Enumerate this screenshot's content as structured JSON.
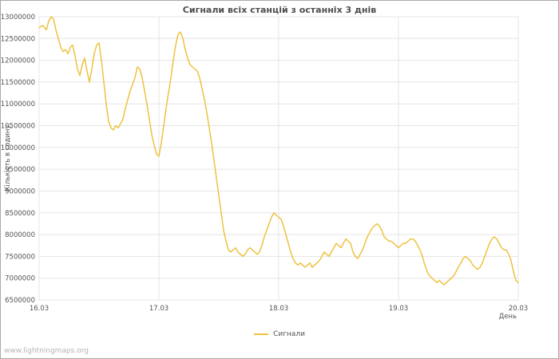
{
  "footer": {
    "watermark": "www.lightningmaps.org"
  },
  "chart_data": {
    "type": "line",
    "title": "Сигнали всіх станцій з останніх 3 днів",
    "xlabel": "День",
    "ylabel": "Кількість в годину",
    "grid": true,
    "legend_position": "bottom-center",
    "colors": {
      "line": "#edc240",
      "grid": "#e5e5e5",
      "border": "#cccccc",
      "tick_text": "#545454",
      "title_text": "#4d4d4d",
      "watermark_text": "#b3b3b3"
    },
    "xlim": [
      0,
      4
    ],
    "ylim": [
      6500000,
      13000000
    ],
    "x_ticks": [
      {
        "pos": 0,
        "label": "16.03"
      },
      {
        "pos": 1,
        "label": "17.03"
      },
      {
        "pos": 2,
        "label": "18.03"
      },
      {
        "pos": 3,
        "label": "19.03"
      },
      {
        "pos": 4,
        "label": "20.03"
      }
    ],
    "y_ticks": [
      6500000,
      7000000,
      7500000,
      8000000,
      8500000,
      9000000,
      9500000,
      10000000,
      10500000,
      11000000,
      11500000,
      12000000,
      12500000,
      13000000
    ],
    "series": [
      {
        "name": "Сигнали",
        "color": "#edc240",
        "points": [
          [
            0.0,
            12750000
          ],
          [
            0.03,
            12800000
          ],
          [
            0.06,
            12700000
          ],
          [
            0.08,
            12900000
          ],
          [
            0.1,
            13000000
          ],
          [
            0.12,
            12950000
          ],
          [
            0.14,
            12700000
          ],
          [
            0.16,
            12500000
          ],
          [
            0.18,
            12300000
          ],
          [
            0.2,
            12200000
          ],
          [
            0.22,
            12250000
          ],
          [
            0.24,
            12150000
          ],
          [
            0.26,
            12300000
          ],
          [
            0.28,
            12350000
          ],
          [
            0.3,
            12100000
          ],
          [
            0.32,
            11800000
          ],
          [
            0.34,
            11650000
          ],
          [
            0.36,
            11900000
          ],
          [
            0.38,
            12050000
          ],
          [
            0.4,
            11750000
          ],
          [
            0.42,
            11500000
          ],
          [
            0.44,
            11800000
          ],
          [
            0.46,
            12150000
          ],
          [
            0.48,
            12350000
          ],
          [
            0.5,
            12400000
          ],
          [
            0.52,
            12000000
          ],
          [
            0.54,
            11500000
          ],
          [
            0.56,
            11000000
          ],
          [
            0.58,
            10600000
          ],
          [
            0.6,
            10450000
          ],
          [
            0.62,
            10400000
          ],
          [
            0.64,
            10500000
          ],
          [
            0.66,
            10450000
          ],
          [
            0.68,
            10550000
          ],
          [
            0.7,
            10650000
          ],
          [
            0.72,
            10900000
          ],
          [
            0.74,
            11100000
          ],
          [
            0.76,
            11300000
          ],
          [
            0.78,
            11450000
          ],
          [
            0.8,
            11600000
          ],
          [
            0.82,
            11850000
          ],
          [
            0.84,
            11800000
          ],
          [
            0.86,
            11600000
          ],
          [
            0.88,
            11300000
          ],
          [
            0.9,
            11000000
          ],
          [
            0.92,
            10650000
          ],
          [
            0.94,
            10300000
          ],
          [
            0.96,
            10050000
          ],
          [
            0.98,
            9850000
          ],
          [
            1.0,
            9800000
          ],
          [
            1.02,
            10100000
          ],
          [
            1.04,
            10500000
          ],
          [
            1.06,
            10900000
          ],
          [
            1.08,
            11250000
          ],
          [
            1.1,
            11600000
          ],
          [
            1.12,
            12000000
          ],
          [
            1.14,
            12350000
          ],
          [
            1.16,
            12600000
          ],
          [
            1.18,
            12650000
          ],
          [
            1.2,
            12500000
          ],
          [
            1.22,
            12250000
          ],
          [
            1.24,
            12050000
          ],
          [
            1.26,
            11900000
          ],
          [
            1.28,
            11850000
          ],
          [
            1.3,
            11800000
          ],
          [
            1.32,
            11750000
          ],
          [
            1.34,
            11600000
          ],
          [
            1.36,
            11350000
          ],
          [
            1.38,
            11100000
          ],
          [
            1.4,
            10800000
          ],
          [
            1.42,
            10450000
          ],
          [
            1.44,
            10100000
          ],
          [
            1.46,
            9700000
          ],
          [
            1.48,
            9300000
          ],
          [
            1.5,
            8900000
          ],
          [
            1.52,
            8500000
          ],
          [
            1.54,
            8100000
          ],
          [
            1.56,
            7850000
          ],
          [
            1.58,
            7650000
          ],
          [
            1.6,
            7600000
          ],
          [
            1.62,
            7650000
          ],
          [
            1.64,
            7700000
          ],
          [
            1.66,
            7600000
          ],
          [
            1.68,
            7550000
          ],
          [
            1.7,
            7500000
          ],
          [
            1.72,
            7550000
          ],
          [
            1.74,
            7650000
          ],
          [
            1.76,
            7700000
          ],
          [
            1.78,
            7650000
          ],
          [
            1.8,
            7600000
          ],
          [
            1.82,
            7550000
          ],
          [
            1.84,
            7600000
          ],
          [
            1.86,
            7750000
          ],
          [
            1.88,
            7950000
          ],
          [
            1.9,
            8100000
          ],
          [
            1.92,
            8250000
          ],
          [
            1.94,
            8400000
          ],
          [
            1.96,
            8500000
          ],
          [
            1.98,
            8450000
          ],
          [
            2.0,
            8400000
          ],
          [
            2.02,
            8350000
          ],
          [
            2.04,
            8200000
          ],
          [
            2.06,
            8000000
          ],
          [
            2.08,
            7800000
          ],
          [
            2.1,
            7600000
          ],
          [
            2.12,
            7450000
          ],
          [
            2.14,
            7350000
          ],
          [
            2.16,
            7300000
          ],
          [
            2.18,
            7350000
          ],
          [
            2.2,
            7300000
          ],
          [
            2.22,
            7250000
          ],
          [
            2.24,
            7300000
          ],
          [
            2.26,
            7350000
          ],
          [
            2.28,
            7250000
          ],
          [
            2.3,
            7300000
          ],
          [
            2.32,
            7350000
          ],
          [
            2.34,
            7400000
          ],
          [
            2.36,
            7500000
          ],
          [
            2.38,
            7600000
          ],
          [
            2.4,
            7550000
          ],
          [
            2.42,
            7500000
          ],
          [
            2.44,
            7600000
          ],
          [
            2.46,
            7700000
          ],
          [
            2.48,
            7800000
          ],
          [
            2.5,
            7750000
          ],
          [
            2.52,
            7700000
          ],
          [
            2.54,
            7800000
          ],
          [
            2.56,
            7900000
          ],
          [
            2.58,
            7850000
          ],
          [
            2.6,
            7800000
          ],
          [
            2.62,
            7600000
          ],
          [
            2.64,
            7500000
          ],
          [
            2.66,
            7450000
          ],
          [
            2.68,
            7550000
          ],
          [
            2.7,
            7650000
          ],
          [
            2.72,
            7800000
          ],
          [
            2.74,
            7950000
          ],
          [
            2.76,
            8050000
          ],
          [
            2.78,
            8150000
          ],
          [
            2.8,
            8200000
          ],
          [
            2.82,
            8250000
          ],
          [
            2.84,
            8200000
          ],
          [
            2.86,
            8100000
          ],
          [
            2.88,
            7950000
          ],
          [
            2.9,
            7900000
          ],
          [
            2.92,
            7850000
          ],
          [
            2.94,
            7850000
          ],
          [
            2.96,
            7800000
          ],
          [
            2.98,
            7750000
          ],
          [
            3.0,
            7700000
          ],
          [
            3.02,
            7750000
          ],
          [
            3.04,
            7800000
          ],
          [
            3.06,
            7800000
          ],
          [
            3.08,
            7850000
          ],
          [
            3.1,
            7900000
          ],
          [
            3.12,
            7900000
          ],
          [
            3.14,
            7850000
          ],
          [
            3.16,
            7750000
          ],
          [
            3.18,
            7650000
          ],
          [
            3.2,
            7500000
          ],
          [
            3.22,
            7300000
          ],
          [
            3.24,
            7150000
          ],
          [
            3.26,
            7050000
          ],
          [
            3.28,
            7000000
          ],
          [
            3.3,
            6950000
          ],
          [
            3.32,
            6900000
          ],
          [
            3.34,
            6950000
          ],
          [
            3.36,
            6900000
          ],
          [
            3.38,
            6850000
          ],
          [
            3.4,
            6900000
          ],
          [
            3.42,
            6950000
          ],
          [
            3.44,
            7000000
          ],
          [
            3.46,
            7050000
          ],
          [
            3.48,
            7150000
          ],
          [
            3.5,
            7250000
          ],
          [
            3.52,
            7350000
          ],
          [
            3.54,
            7450000
          ],
          [
            3.56,
            7500000
          ],
          [
            3.58,
            7450000
          ],
          [
            3.6,
            7400000
          ],
          [
            3.62,
            7300000
          ],
          [
            3.64,
            7250000
          ],
          [
            3.66,
            7200000
          ],
          [
            3.68,
            7250000
          ],
          [
            3.7,
            7350000
          ],
          [
            3.72,
            7500000
          ],
          [
            3.74,
            7650000
          ],
          [
            3.76,
            7800000
          ],
          [
            3.78,
            7900000
          ],
          [
            3.8,
            7950000
          ],
          [
            3.82,
            7900000
          ],
          [
            3.84,
            7800000
          ],
          [
            3.86,
            7700000
          ],
          [
            3.88,
            7650000
          ],
          [
            3.9,
            7650000
          ],
          [
            3.92,
            7550000
          ],
          [
            3.94,
            7400000
          ],
          [
            3.96,
            7150000
          ],
          [
            3.98,
            6950000
          ],
          [
            4.0,
            6900000
          ]
        ]
      }
    ]
  }
}
